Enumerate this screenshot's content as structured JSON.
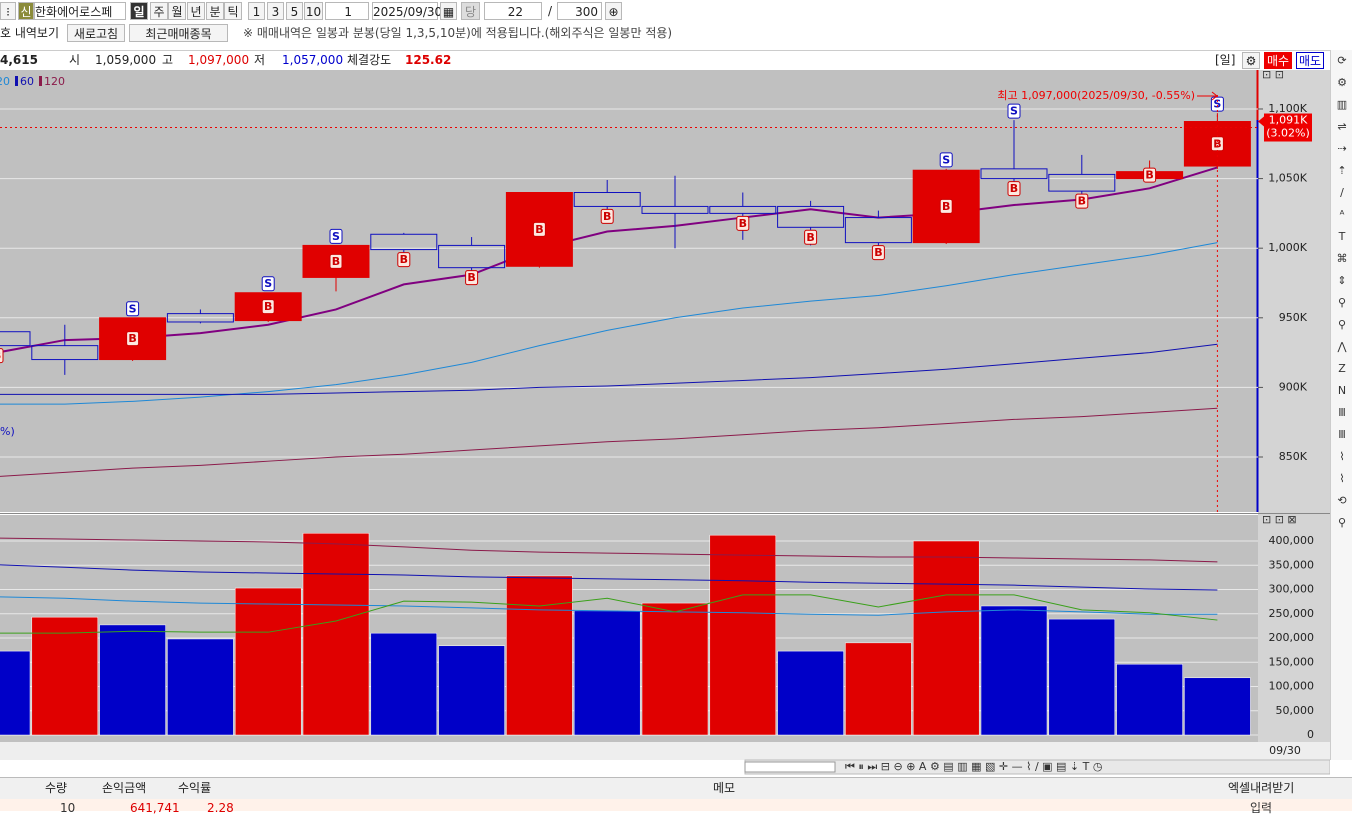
{
  "toolbar": {
    "badge": "신",
    "stock_name": "한화에어로스페",
    "periods": [
      "일",
      "주",
      "월",
      "년",
      "분",
      "틱"
    ],
    "minutes": [
      "1",
      "3",
      "5",
      "10"
    ],
    "interval": "1",
    "date": "2025/09/30",
    "current_label": "당",
    "count": "22",
    "separator": "/",
    "total": "300"
  },
  "action_bar": {
    "history": "호 내역보기",
    "refresh": "새로고침",
    "recent": "최근매매종목",
    "notice": "※ 매매내역은 일봉과 분봉(당일 1,3,5,10분)에 적용됩니다.(해외주식은 일봉만 적용)"
  },
  "info_bar": {
    "volume": "4,615",
    "open_label": "시",
    "open": "1,059,000",
    "high_label": "고",
    "high": "1,097,000",
    "low_label": "저",
    "low": "1,057,000",
    "strength_label": "체결강도",
    "strength": "125.62",
    "period": "[일]",
    "buy": "매수",
    "sell": "매도"
  },
  "chart_data": {
    "type": "candlestick",
    "categories": [
      null,
      null,
      null,
      null,
      null,
      null,
      null,
      null,
      null,
      null,
      null,
      null,
      null,
      null,
      null,
      null,
      null,
      null,
      "09/30"
    ],
    "open": [
      940000,
      930000,
      920000,
      953000,
      948000,
      979000,
      1010000,
      1002000,
      987000,
      1040000,
      1030000,
      1030000,
      1030000,
      1022000,
      1004000,
      1057000,
      1053000,
      1050000,
      1059000
    ],
    "high": [
      942000,
      945000,
      950000,
      956000,
      968000,
      1002000,
      1011000,
      1008000,
      1040000,
      1049000,
      1052000,
      1040000,
      1034000,
      1027000,
      1057000,
      1092000,
      1067000,
      1063000,
      1097000
    ],
    "low": [
      928000,
      909000,
      919000,
      946000,
      947000,
      969000,
      997000,
      983000,
      986000,
      1026000,
      1000000,
      1006000,
      1002000,
      1000000,
      1003000,
      1048000,
      1034000,
      1050000,
      1057000
    ],
    "close": [
      930000,
      920000,
      950000,
      947000,
      968000,
      1002000,
      999000,
      986000,
      1040000,
      1030000,
      1025000,
      1025000,
      1015000,
      1004000,
      1056000,
      1050000,
      1041000,
      1055000,
      1091000
    ],
    "up_color": "#e00000",
    "down_color": "#1010c0",
    "series": [
      {
        "color": "#800080",
        "values": [
          925000,
          934000,
          935500,
          939000,
          945000,
          956000,
          974000,
          981000,
          1000000,
          1012000,
          1016000,
          1022000,
          1028000,
          1022000,
          1025000,
          1031000,
          1035000,
          1043000,
          1058000
        ]
      },
      {
        "name": "20",
        "color": "#1e88d6",
        "values": [
          888000,
          888000,
          890000,
          893000,
          897000,
          902000,
          909000,
          918000,
          930000,
          941000,
          950000,
          957000,
          962000,
          966000,
          973000,
          981000,
          988000,
          995000,
          1004000
        ]
      },
      {
        "name": "60",
        "color": "#1010b0",
        "values": [
          895000,
          895000,
          895000,
          895000,
          895000,
          896000,
          897000,
          898000,
          900000,
          901000,
          903000,
          905000,
          907000,
          910000,
          913000,
          917000,
          921000,
          925000,
          931000
        ]
      },
      {
        "name": "120",
        "color": "#8b1a4a",
        "values": [
          836000,
          839000,
          842000,
          844000,
          847000,
          850000,
          852000,
          855000,
          858000,
          861000,
          863000,
          866000,
          869000,
          871000,
          874000,
          877000,
          879000,
          882000,
          885000
        ]
      }
    ],
    "sell_signals": [
      null,
      null,
      "S",
      null,
      "S",
      "S",
      null,
      null,
      null,
      null,
      null,
      null,
      null,
      null,
      "S",
      "S",
      null,
      null,
      "S"
    ],
    "buy_signals": [
      "B",
      null,
      "B",
      null,
      "B",
      "B",
      "B",
      "B",
      "B",
      "B",
      null,
      "B",
      "B",
      "B",
      "B",
      "B",
      "B",
      "B",
      "B"
    ],
    "ylim": [
      810500,
      1128000
    ],
    "yticks": [
      {
        "value": 1100000,
        "label": "1,100K"
      },
      {
        "value": 1050000,
        "label": "1,050K"
      },
      {
        "value": 1000000,
        "label": "1,000K"
      },
      {
        "value": 950000,
        "label": "950K"
      },
      {
        "value": 900000,
        "label": "900K"
      },
      {
        "value": 850000,
        "label": "850K"
      }
    ],
    "grid": true,
    "annotation": "최고 1,097,000(2025/09/30, -0.55%)",
    "last_price_label": "1,091K",
    "last_change_label": "(3.02%)",
    "left_note": "%)",
    "volume": {
      "values": [
        173000,
        243000,
        227000,
        198000,
        303000,
        416000,
        210000,
        184000,
        328000,
        256000,
        272000,
        412000,
        173000,
        190000,
        400000,
        266000,
        239000,
        146000,
        118000
      ],
      "colors": [
        "#0000c8",
        "#e00000",
        "#0000c8",
        "#0000c8",
        "#e00000",
        "#e00000",
        "#0000c8",
        "#0000c8",
        "#e00000",
        "#0000c8",
        "#e00000",
        "#e00000",
        "#0000c8",
        "#e00000",
        "#e00000",
        "#0000c8",
        "#0000c8",
        "#0000c8",
        "#0000c8"
      ],
      "ylim": [
        -14400,
        453600
      ],
      "yticks": [
        {
          "value": 400000,
          "label": "400,000"
        },
        {
          "value": 350000,
          "label": "350,000"
        },
        {
          "value": 300000,
          "label": "300,000"
        },
        {
          "value": 250000,
          "label": "250,000"
        },
        {
          "value": 200000,
          "label": "200,000"
        },
        {
          "value": 150000,
          "label": "150,000"
        },
        {
          "value": 100000,
          "label": "100,000"
        },
        {
          "value": 50000,
          "label": "50,000"
        },
        0
      ],
      "series": [
        {
          "color": "#8b1a4a",
          "values": [
            406000,
            404000,
            402000,
            400000,
            398000,
            394000,
            388000,
            381000,
            377000,
            375000,
            373000,
            371000,
            369000,
            367000,
            367000,
            365000,
            363000,
            361000,
            357000
          ]
        },
        {
          "color": "#1010b0",
          "values": [
            351000,
            346000,
            340000,
            336000,
            334000,
            332000,
            330000,
            326000,
            324000,
            322000,
            320000,
            318000,
            315000,
            313000,
            311000,
            309000,
            305000,
            301000,
            299000
          ]
        },
        {
          "color": "#1e88d6",
          "values": [
            285000,
            282000,
            276000,
            272000,
            270000,
            268000,
            266000,
            262000,
            258000,
            256000,
            254000,
            252000,
            249000,
            247000,
            254000,
            258000,
            254000,
            249000,
            249000
          ]
        },
        {
          "color": "#3aa01a",
          "values": [
            210000,
            210000,
            214000,
            212000,
            212000,
            235000,
            276000,
            274000,
            266000,
            282000,
            254000,
            289000,
            289000,
            264000,
            289000,
            289000,
            258000,
            252000,
            237000
          ]
        }
      ]
    }
  },
  "table": {
    "headers": [
      "수량",
      "손익금액",
      "수익률",
      "메모",
      "엑셀내려받기"
    ],
    "row": [
      "10",
      "641,741",
      "2.28",
      "입력"
    ]
  }
}
